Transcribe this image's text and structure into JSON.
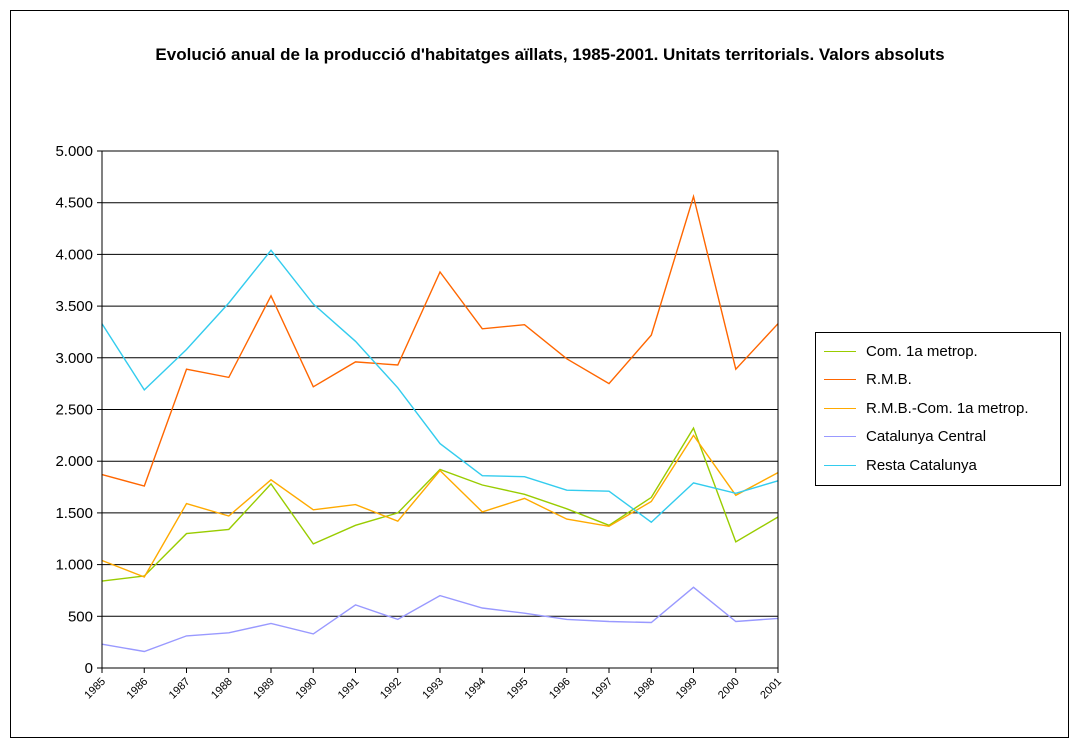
{
  "chart_data": {
    "type": "line",
    "title": "Evolució anual de la producció d'habitatges aïllats, 1985-2001. Unitats territorials. Valors absoluts",
    "xlabel": "",
    "ylabel": "",
    "x": [
      "1985",
      "1986",
      "1987",
      "1988",
      "1989",
      "1990",
      "1991",
      "1992",
      "1993",
      "1994",
      "1995",
      "1996",
      "1997",
      "1998",
      "1999",
      "2000",
      "2001"
    ],
    "ylim": [
      0,
      5000
    ],
    "yticks": [
      0,
      500,
      1000,
      1500,
      2000,
      2500,
      3000,
      3500,
      4000,
      4500,
      5000
    ],
    "ytick_labels": [
      "0",
      "500",
      "1.000",
      "1.500",
      "2.000",
      "2.500",
      "3.000",
      "3.500",
      "4.000",
      "4.500",
      "5.000"
    ],
    "grid": "horizontal",
    "legend_position": "right",
    "series": [
      {
        "name": "Com. 1a metrop.",
        "color": "#99cc00",
        "values": [
          840,
          890,
          1300,
          1340,
          1780,
          1200,
          1380,
          1500,
          1920,
          1770,
          1680,
          1540,
          1380,
          1650,
          2320,
          1220,
          1460
        ]
      },
      {
        "name": "R.M.B.",
        "color": "#ff6600",
        "values": [
          1870,
          1760,
          2890,
          2810,
          3600,
          2720,
          2960,
          2930,
          3830,
          3280,
          3320,
          2990,
          2750,
          3220,
          4560,
          2890,
          3330
        ]
      },
      {
        "name": "R.M.B.-Com. 1a metrop.",
        "color": "#ffaa00",
        "values": [
          1040,
          880,
          1590,
          1470,
          1820,
          1530,
          1580,
          1420,
          1910,
          1510,
          1640,
          1440,
          1370,
          1610,
          2250,
          1670,
          1890
        ]
      },
      {
        "name": "Catalunya Central",
        "color": "#9999ff",
        "values": [
          230,
          160,
          310,
          340,
          430,
          330,
          610,
          470,
          700,
          580,
          530,
          470,
          450,
          440,
          780,
          450,
          480
        ]
      },
      {
        "name": "Resta Catalunya",
        "color": "#33ccee",
        "values": [
          3330,
          2690,
          3080,
          3530,
          4040,
          3520,
          3160,
          2710,
          2170,
          1860,
          1850,
          1720,
          1710,
          1410,
          1790,
          1690,
          1810
        ]
      }
    ]
  }
}
